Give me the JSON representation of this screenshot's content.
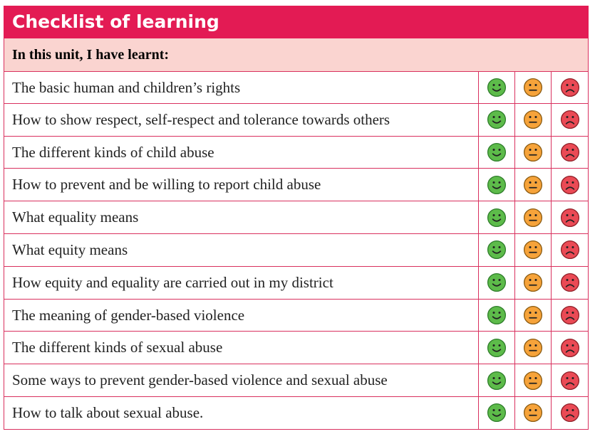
{
  "header": {
    "title": "Checklist of learning",
    "subtitle": "In this unit, I have learnt:"
  },
  "rows": [
    "The basic human and children’s rights",
    "How to show respect, self-respect and tolerance towards others",
    "The different kinds of child abuse",
    "How to prevent and be willing to report child abuse",
    "What equality means",
    "What equity means",
    "How equity and equality are carried out in my district",
    "The meaning of gender-based violence",
    "The different kinds of sexual abuse",
    "Some ways to prevent gender-based violence and sexual abuse",
    "How to talk about sexual abuse."
  ]
}
